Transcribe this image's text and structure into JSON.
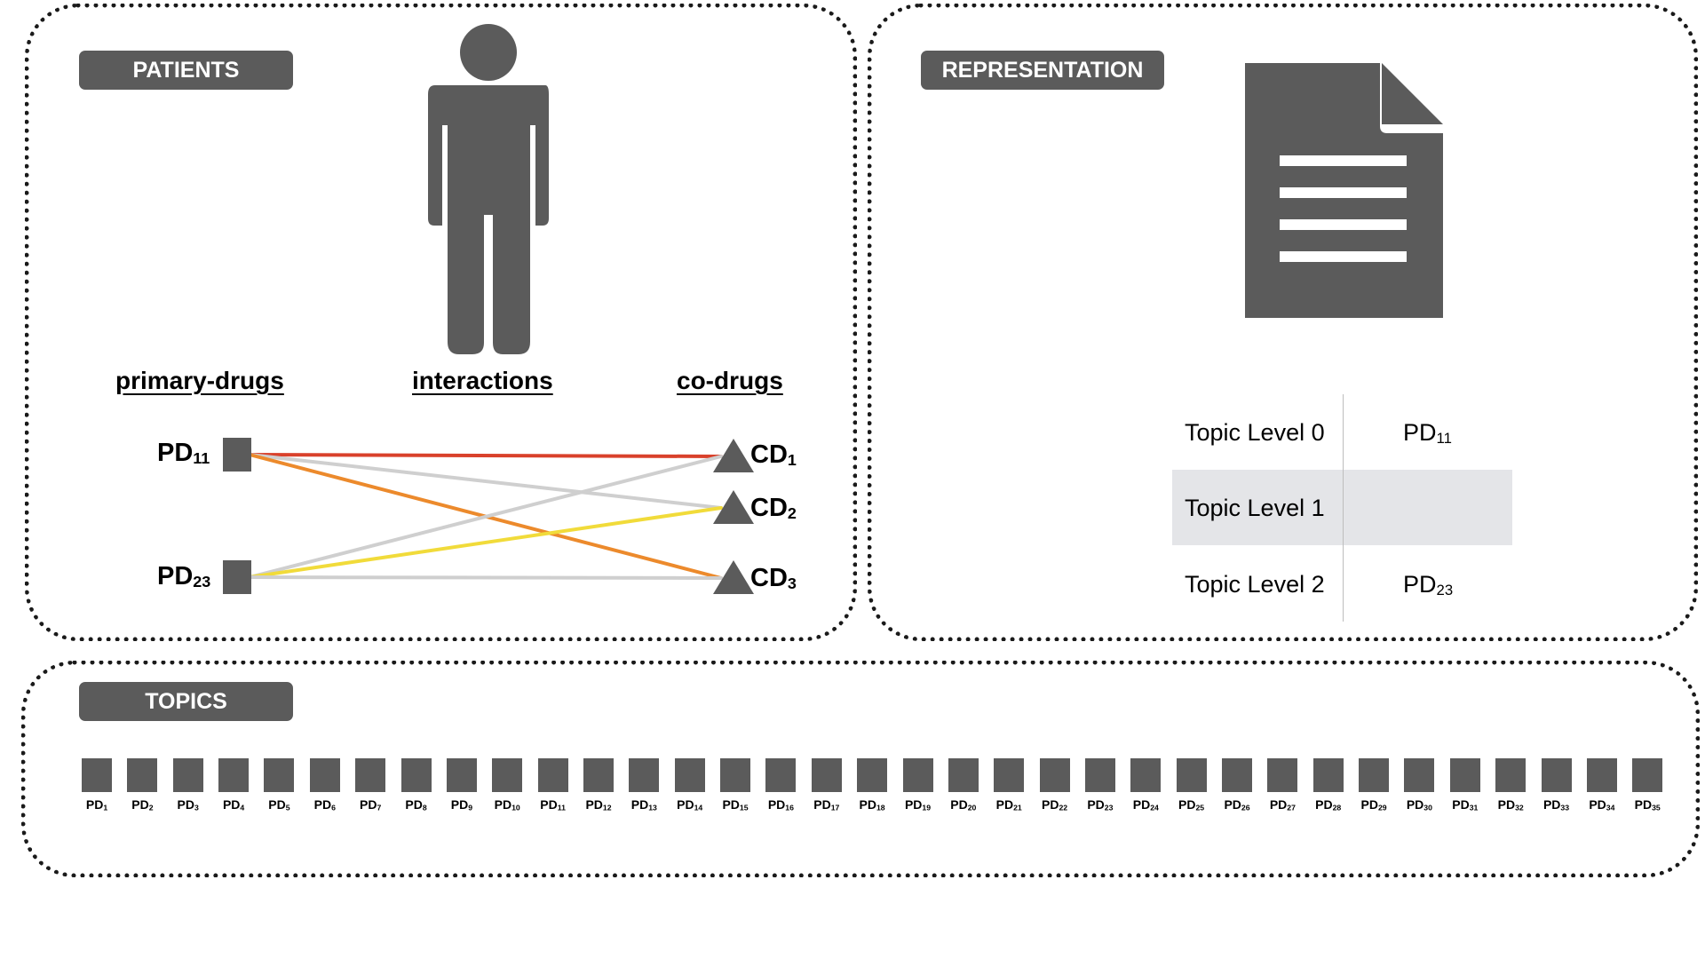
{
  "patients": {
    "tag": "PATIENTS",
    "headers": {
      "primary": "primary-drugs",
      "interactions": "interactions",
      "codrugs": "co-drugs"
    },
    "primary_drugs": [
      {
        "base": "PD",
        "sub": "11"
      },
      {
        "base": "PD",
        "sub": "23"
      }
    ],
    "co_drugs": [
      {
        "base": "CD",
        "sub": "1"
      },
      {
        "base": "CD",
        "sub": "2"
      },
      {
        "base": "CD",
        "sub": "3"
      }
    ],
    "edges": [
      {
        "from": 0,
        "to": 0,
        "color": "#d9412b"
      },
      {
        "from": 0,
        "to": 1,
        "color": "#cfcfcf"
      },
      {
        "from": 0,
        "to": 2,
        "color": "#ec8a2c"
      },
      {
        "from": 1,
        "to": 0,
        "color": "#cfcfcf"
      },
      {
        "from": 1,
        "to": 1,
        "color": "#f1db3a"
      },
      {
        "from": 1,
        "to": 2,
        "color": "#cfcfcf"
      }
    ]
  },
  "representation": {
    "tag": "REPRESENTATION",
    "rows": [
      {
        "label": "Topic Level 0",
        "value": {
          "base": "PD",
          "sub": "11"
        },
        "highlight": false
      },
      {
        "label": "Topic Level 1",
        "value": null,
        "highlight": true
      },
      {
        "label": "Topic Level 2",
        "value": {
          "base": "PD",
          "sub": "23"
        },
        "highlight": false
      }
    ]
  },
  "topics": {
    "tag": "TOPICS",
    "items": [
      {
        "base": "PD",
        "sub": "1"
      },
      {
        "base": "PD",
        "sub": "2"
      },
      {
        "base": "PD",
        "sub": "3"
      },
      {
        "base": "PD",
        "sub": "4"
      },
      {
        "base": "PD",
        "sub": "5"
      },
      {
        "base": "PD",
        "sub": "6"
      },
      {
        "base": "PD",
        "sub": "7"
      },
      {
        "base": "PD",
        "sub": "8"
      },
      {
        "base": "PD",
        "sub": "9"
      },
      {
        "base": "PD",
        "sub": "10"
      },
      {
        "base": "PD",
        "sub": "11"
      },
      {
        "base": "PD",
        "sub": "12"
      },
      {
        "base": "PD",
        "sub": "13"
      },
      {
        "base": "PD",
        "sub": "14"
      },
      {
        "base": "PD",
        "sub": "15"
      },
      {
        "base": "PD",
        "sub": "16"
      },
      {
        "base": "PD",
        "sub": "17"
      },
      {
        "base": "PD",
        "sub": "18"
      },
      {
        "base": "PD",
        "sub": "19"
      },
      {
        "base": "PD",
        "sub": "20"
      },
      {
        "base": "PD",
        "sub": "21"
      },
      {
        "base": "PD",
        "sub": "22"
      },
      {
        "base": "PD",
        "sub": "23"
      },
      {
        "base": "PD",
        "sub": "24"
      },
      {
        "base": "PD",
        "sub": "25"
      },
      {
        "base": "PD",
        "sub": "26"
      },
      {
        "base": "PD",
        "sub": "27"
      },
      {
        "base": "PD",
        "sub": "28"
      },
      {
        "base": "PD",
        "sub": "29"
      },
      {
        "base": "PD",
        "sub": "30"
      },
      {
        "base": "PD",
        "sub": "31"
      },
      {
        "base": "PD",
        "sub": "32"
      },
      {
        "base": "PD",
        "sub": "33"
      },
      {
        "base": "PD",
        "sub": "34"
      },
      {
        "base": "PD",
        "sub": "35"
      }
    ]
  },
  "colors": {
    "icon_gray": "#5b5b5b",
    "highlight_row": "#e4e5e8",
    "divider": "#bdbdbd"
  },
  "icons": {
    "patient": "person-icon",
    "representation": "document-icon"
  }
}
